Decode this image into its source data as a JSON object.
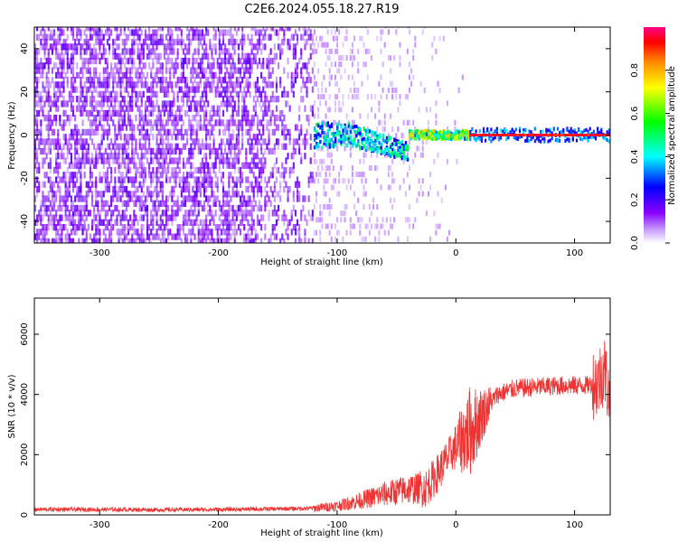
{
  "title": "C2E6.2024.055.18.27.R19",
  "chart_data": [
    {
      "type": "heatmap",
      "xlabel": "Height of straight line (km)",
      "ylabel": "Frequency (Hz)",
      "xlim": [
        -355,
        130
      ],
      "ylim": [
        -50,
        50
      ],
      "xticks": [
        -300,
        -200,
        -100,
        0,
        100
      ],
      "yticks": [
        -40,
        -20,
        0,
        20,
        40
      ],
      "colorbar": {
        "label": "Normalized spectral amplitude",
        "range": [
          0,
          1
        ],
        "ticks": [
          0.0,
          0.2,
          0.4,
          0.6,
          0.8
        ],
        "colormap": [
          "#ffffff",
          "#8800ff",
          "#0000ff",
          "#00ffff",
          "#00ff00",
          "#ffff00",
          "#ff8800",
          "#ff0000",
          "#ff0088"
        ]
      },
      "regions": [
        {
          "x": [
            -355,
            -120
          ],
          "freq_spread_hz": 50,
          "amplitude": 0.08,
          "description_level": "broadband noise"
        },
        {
          "x": [
            -120,
            -40
          ],
          "freq_center_hz": 0,
          "freq_spread_hz": 6,
          "amplitude": 0.3
        },
        {
          "x": [
            -40,
            130
          ],
          "freq_center_hz": 0,
          "freq_spread_hz": 1,
          "amplitude": 0.95
        }
      ]
    },
    {
      "type": "line",
      "xlabel": "Height of straight line (km)",
      "ylabel": "SNR (10 * v/v)",
      "xlim": [
        -355,
        130
      ],
      "ylim": [
        0,
        7200
      ],
      "xticks": [
        -300,
        -200,
        -100,
        0,
        100
      ],
      "yticks": [
        0,
        2000,
        4000,
        6000
      ],
      "color": "#ee3333",
      "series": [
        {
          "x": [
            -355,
            -300,
            -250,
            -200,
            -150,
            -120,
            -100,
            -80,
            -60,
            -40,
            -25,
            -15,
            -5,
            5,
            15,
            25,
            35,
            50,
            70,
            90,
            110,
            120,
            125,
            130
          ],
          "values": [
            180,
            180,
            170,
            180,
            200,
            220,
            300,
            480,
            700,
            850,
            900,
            1400,
            2000,
            2500,
            2900,
            3500,
            4000,
            4200,
            4250,
            4300,
            4300,
            4400,
            4900,
            3700
          ]
        }
      ]
    }
  ]
}
